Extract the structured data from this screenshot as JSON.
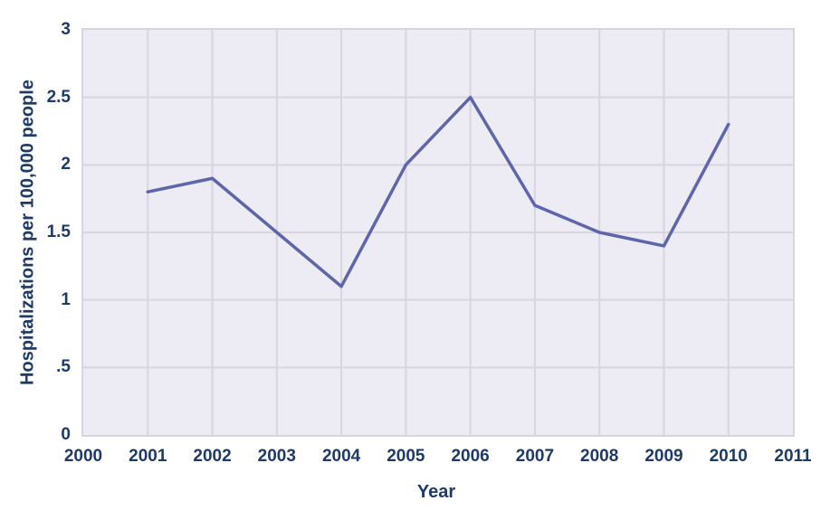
{
  "chart_data": {
    "type": "line",
    "title": "",
    "xlabel": "Year",
    "ylabel": "Hospitalizations per 100,000 people",
    "x": [
      2001,
      2002,
      2003,
      2004,
      2005,
      2006,
      2007,
      2008,
      2009,
      2010
    ],
    "values": [
      1.8,
      1.9,
      1.5,
      1.1,
      2.0,
      2.5,
      1.7,
      1.5,
      1.4,
      2.3
    ],
    "xlim": [
      2000,
      2011
    ],
    "ylim": [
      0,
      3
    ],
    "x_tick_labels": [
      "2000",
      "2001",
      "2002",
      "2003",
      "2004",
      "2005",
      "2006",
      "2007",
      "2008",
      "2009",
      "2010",
      "2011"
    ],
    "x_tick_values": [
      2000,
      2001,
      2002,
      2003,
      2004,
      2005,
      2006,
      2007,
      2008,
      2009,
      2010,
      2011
    ],
    "y_tick_labels": [
      "0",
      ".5",
      "1",
      "1.5",
      "2",
      "2.5",
      "3"
    ],
    "y_tick_values": [
      0,
      0.5,
      1,
      1.5,
      2,
      2.5,
      3
    ],
    "grid": true,
    "legend_position": "none",
    "colors": {
      "line": "#5e66ab",
      "plot_bg": "#edebf4",
      "grid": "#d8d5de",
      "text": "#1e3a66",
      "page_bg": "#ffffff"
    }
  }
}
